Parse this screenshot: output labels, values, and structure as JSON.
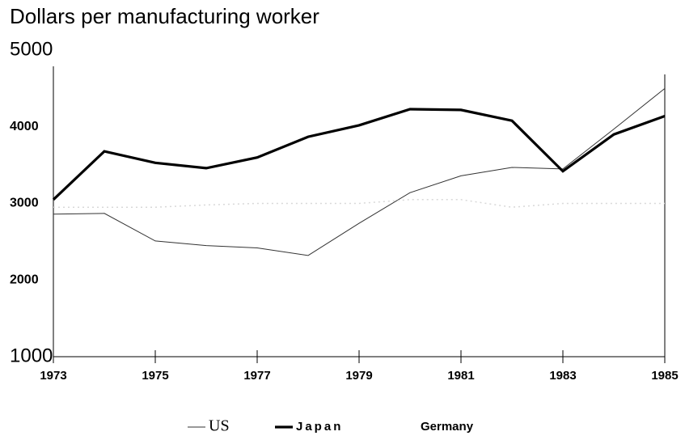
{
  "chart_data": {
    "type": "line",
    "title": "Dollars per manufacturing worker",
    "x": [
      1973,
      1974,
      1975,
      1976,
      1977,
      1978,
      1979,
      1980,
      1981,
      1982,
      1983,
      1984,
      1985
    ],
    "series": [
      {
        "name": "US",
        "color": "#333333",
        "values": [
          2860,
          2870,
          2510,
          2450,
          2420,
          2320,
          2740,
          3140,
          3360,
          3470,
          3450,
          3970,
          4500
        ]
      },
      {
        "name": "Japan",
        "color": "#000000",
        "values": [
          3050,
          3680,
          3530,
          3460,
          3600,
          3870,
          4020,
          4230,
          4220,
          4080,
          3420,
          3900,
          4140
        ]
      },
      {
        "name": "Germany",
        "color": "#d8d8d8",
        "values": [
          2950,
          2950,
          2950,
          2980,
          3000,
          3000,
          3000,
          3050,
          3050,
          2950,
          3000,
          3000,
          3000
        ]
      }
    ],
    "xlim": [
      1973,
      1985
    ],
    "xticks": [
      1973,
      1975,
      1977,
      1979,
      1981,
      1983,
      1985
    ],
    "ylim": [
      1000,
      5000
    ],
    "yticks": [
      1000,
      2000,
      3000,
      4000,
      5000
    ],
    "grid": false
  }
}
